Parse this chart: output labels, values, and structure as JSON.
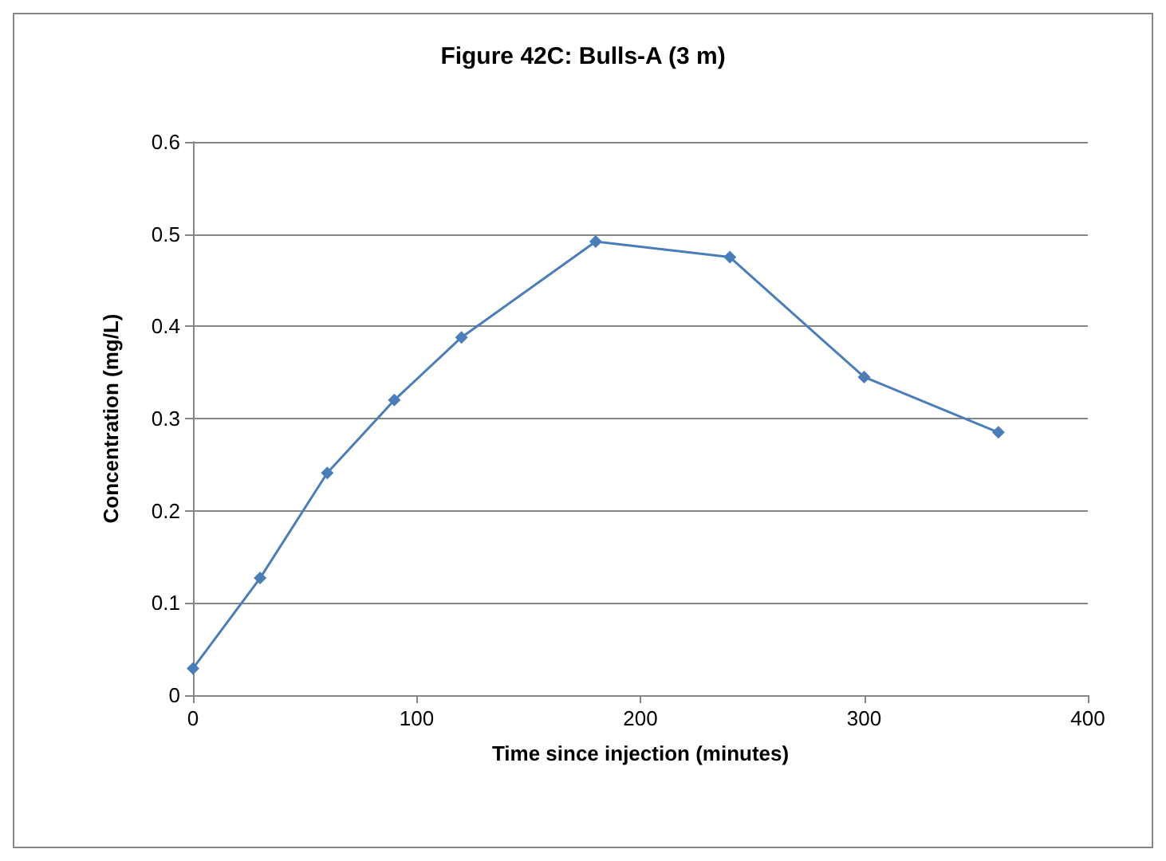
{
  "chart_data": {
    "type": "line",
    "title": "Figure 42C: Bulls-A (3 m)",
    "xlabel": "Time since injection (minutes)",
    "ylabel": "Concentration (mg/L)",
    "x": [
      0,
      30,
      60,
      90,
      120,
      180,
      240,
      300,
      360
    ],
    "series": [
      {
        "color": "#4a7ebb",
        "values": [
          0.029,
          0.127,
          0.241,
          0.32,
          0.388,
          0.492,
          0.475,
          0.345,
          0.285
        ]
      }
    ],
    "xlim": [
      0,
      400
    ],
    "xticks": [
      0,
      100,
      200,
      300,
      400
    ],
    "ylim": [
      0,
      0.6
    ],
    "yticks": [
      0,
      0.1,
      0.2,
      0.3,
      0.4,
      0.5,
      0.6
    ],
    "grid": "y",
    "marker": "diamond",
    "line_style": "solid"
  }
}
